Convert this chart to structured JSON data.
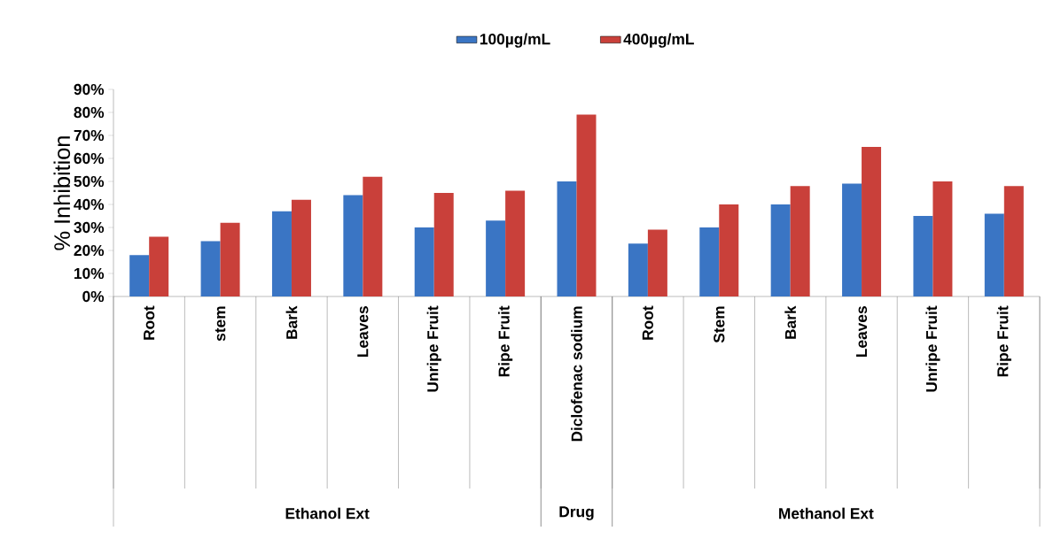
{
  "chart_data": {
    "type": "bar",
    "ylabel": "% Inhibition",
    "categories": [
      "Root",
      "stem",
      "Bark",
      "Leaves",
      "Unripe Fruit",
      "Ripe Fruit",
      "Diclofenac sodium",
      "Root",
      "Stem",
      "Bark",
      "Leaves",
      "Unripe Fruit",
      "Ripe Fruit"
    ],
    "series": [
      {
        "name": "100µg/mL",
        "color": "#3a75c4",
        "values": [
          18,
          24,
          37,
          44,
          30,
          33,
          50,
          23,
          30,
          40,
          49,
          35,
          36
        ]
      },
      {
        "name": "400µg/mL",
        "color": "#c9403a",
        "values": [
          26,
          32,
          42,
          52,
          45,
          46,
          79,
          29,
          40,
          48,
          65,
          50,
          48
        ]
      }
    ],
    "ylim": [
      0,
      90
    ],
    "yticks": [
      {
        "value": 0,
        "label": "0%"
      },
      {
        "value": 10,
        "label": "10%"
      },
      {
        "value": 20,
        "label": "20%"
      },
      {
        "value": 30,
        "label": "30%"
      },
      {
        "value": 40,
        "label": "40%"
      },
      {
        "value": 50,
        "label": "50%"
      },
      {
        "value": 60,
        "label": "60%"
      },
      {
        "value": 70,
        "label": "70%"
      },
      {
        "value": 80,
        "label": "80%"
      },
      {
        "value": 90,
        "label": "90%"
      }
    ],
    "legend": "top",
    "grid": false,
    "annotations": [
      "Ethanol Ext",
      "Drug",
      "Methanol Ext"
    ]
  }
}
